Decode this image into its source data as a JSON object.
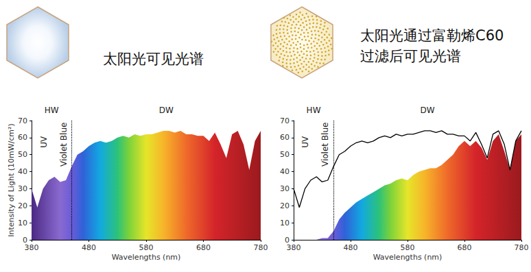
{
  "chart_data": [
    {
      "type": "line",
      "title": "太阳光可见光谱",
      "x_label": "Wavelengths (nm)",
      "y_label": "Intensity of Light (10mW/cm²)",
      "annotations": [
        "HW",
        "DW",
        "UV",
        "Violet Blue"
      ],
      "divider_x": 450,
      "xlim": [
        380,
        780
      ],
      "xticks": [
        380,
        480,
        580,
        680,
        780
      ],
      "ylim": [
        0,
        70
      ],
      "yticks": [
        0,
        10,
        20,
        30,
        40,
        50,
        60,
        70
      ],
      "grid": false,
      "x": [
        380,
        390,
        400,
        410,
        420,
        430,
        440,
        450,
        460,
        470,
        480,
        490,
        500,
        510,
        520,
        530,
        540,
        550,
        560,
        570,
        580,
        590,
        600,
        610,
        620,
        630,
        640,
        650,
        660,
        670,
        680,
        690,
        700,
        710,
        720,
        730,
        740,
        750,
        760,
        770,
        780
      ],
      "series": [
        {
          "type": "area",
          "values": [
            30,
            19,
            30,
            35,
            37,
            34,
            35,
            43,
            50,
            52,
            55,
            57,
            58,
            57,
            58,
            60,
            61,
            60,
            62,
            61,
            62,
            62,
            63,
            64,
            64,
            63,
            64,
            62,
            62,
            61,
            61,
            58,
            63,
            56,
            48,
            62,
            64,
            56,
            41,
            58,
            64
          ]
        }
      ]
    },
    {
      "type": "line",
      "title": "太阳光通过富勒烯C60\n过滤后可见光谱",
      "x_label": "Wavelengths (nm)",
      "annotations": [
        "HW",
        "DW",
        "UV",
        "Violet Blue"
      ],
      "divider_x": 450,
      "xlim": [
        380,
        780
      ],
      "xticks": [
        380,
        480,
        580,
        680,
        780
      ],
      "ylim": [
        0,
        70
      ],
      "yticks": [
        0,
        10,
        20,
        30,
        40,
        50,
        60,
        70
      ],
      "grid": false,
      "x": [
        380,
        390,
        400,
        410,
        420,
        430,
        440,
        450,
        460,
        470,
        480,
        490,
        500,
        510,
        520,
        530,
        540,
        550,
        560,
        570,
        580,
        590,
        600,
        610,
        620,
        630,
        640,
        650,
        660,
        670,
        680,
        690,
        700,
        710,
        720,
        730,
        740,
        750,
        760,
        770,
        780
      ],
      "series": [
        {
          "type": "line",
          "color": "#000000",
          "line_style": "solid",
          "values": [
            30,
            19,
            30,
            35,
            37,
            34,
            35,
            43,
            50,
            52,
            55,
            57,
            58,
            57,
            58,
            60,
            61,
            60,
            62,
            61,
            62,
            62,
            63,
            64,
            64,
            63,
            64,
            62,
            62,
            61,
            61,
            58,
            63,
            56,
            48,
            62,
            64,
            56,
            41,
            58,
            64
          ]
        },
        {
          "type": "area",
          "values": [
            0,
            0,
            0,
            0,
            0,
            1,
            1,
            5,
            12,
            16,
            19,
            22,
            24,
            26,
            28,
            30,
            32,
            33,
            35,
            36,
            35,
            38,
            40,
            41,
            42,
            42,
            44,
            47,
            50,
            55,
            58,
            55,
            58,
            54,
            47,
            58,
            62,
            52,
            41,
            58,
            62
          ]
        }
      ]
    }
  ]
}
